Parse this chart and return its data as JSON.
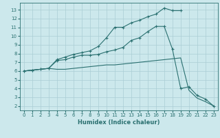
{
  "xlabel": "Humidex (Indice chaleur)",
  "bg_color": "#cce8ec",
  "grid_color": "#aacdd4",
  "line_color": "#2a7070",
  "xlim": [
    -0.5,
    23.5
  ],
  "ylim": [
    1.5,
    13.8
  ],
  "xticks": [
    0,
    1,
    2,
    3,
    4,
    5,
    6,
    7,
    8,
    9,
    10,
    11,
    12,
    13,
    14,
    15,
    16,
    17,
    18,
    19,
    20,
    21,
    22,
    23
  ],
  "yticks": [
    2,
    3,
    4,
    5,
    6,
    7,
    8,
    9,
    10,
    11,
    12,
    13
  ],
  "line1_x": [
    0,
    1,
    2,
    3,
    4,
    5,
    6,
    7,
    8,
    9,
    10,
    11,
    12,
    13,
    14,
    15,
    16,
    17,
    18,
    19
  ],
  "line1_y": [
    6.0,
    6.1,
    6.2,
    6.3,
    7.3,
    7.6,
    7.9,
    8.1,
    8.3,
    8.8,
    9.8,
    11.0,
    11.0,
    11.5,
    11.8,
    12.2,
    12.5,
    13.2,
    12.9,
    12.9
  ],
  "line2_x": [
    0,
    1,
    2,
    3,
    4,
    5,
    6,
    7,
    8,
    9,
    10,
    11,
    12,
    13,
    14,
    15,
    16,
    17,
    18,
    19,
    20,
    21,
    22,
    23
  ],
  "line2_y": [
    6.0,
    6.1,
    6.2,
    6.3,
    7.2,
    7.3,
    7.6,
    7.8,
    7.8,
    7.9,
    8.2,
    8.4,
    8.7,
    9.5,
    9.8,
    10.5,
    11.1,
    11.1,
    8.5,
    4.0,
    4.2,
    3.2,
    2.8,
    2.0
  ],
  "line3_x": [
    0,
    1,
    2,
    3,
    4,
    5,
    6,
    7,
    8,
    9,
    10,
    11,
    12,
    13,
    14,
    15,
    16,
    17,
    18,
    19,
    20,
    21,
    22,
    23
  ],
  "line3_y": [
    6.0,
    6.1,
    6.2,
    6.3,
    6.2,
    6.2,
    6.3,
    6.4,
    6.5,
    6.6,
    6.7,
    6.7,
    6.8,
    6.9,
    7.0,
    7.1,
    7.2,
    7.3,
    7.4,
    7.5,
    3.8,
    2.9,
    2.5,
    2.0
  ]
}
